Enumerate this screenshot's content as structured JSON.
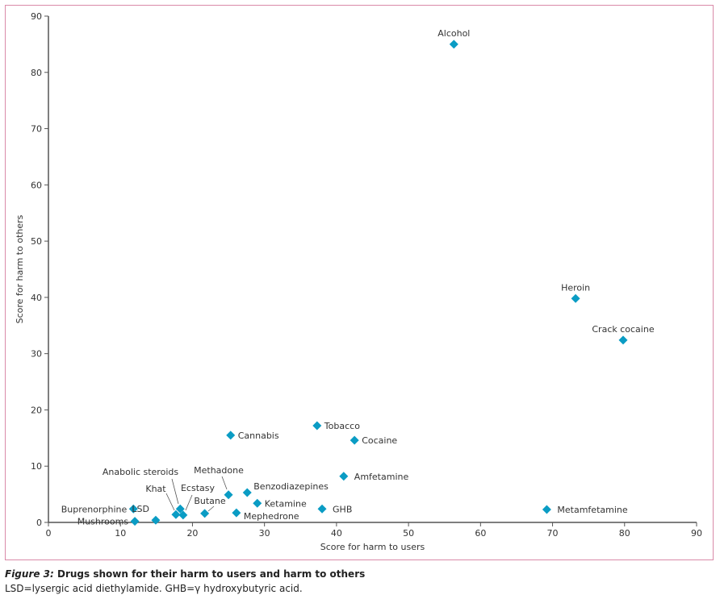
{
  "chart_data": {
    "type": "scatter",
    "title": "",
    "xlabel": "Score for harm to users",
    "ylabel": "Score for harm to others",
    "xlim": [
      0,
      90
    ],
    "ylim": [
      0,
      90
    ],
    "xticks": [
      0,
      10,
      20,
      30,
      40,
      50,
      60,
      70,
      80,
      90
    ],
    "yticks": [
      0,
      10,
      20,
      30,
      40,
      50,
      60,
      70,
      80,
      90
    ],
    "grid": false,
    "marker": "diamond",
    "marker_color": "#0a9cc4",
    "points": [
      {
        "label": "Alcohol",
        "x": 56.3,
        "y": 85.0,
        "label_pos": "top"
      },
      {
        "label": "Heroin",
        "x": 73.2,
        "y": 39.8,
        "label_pos": "top"
      },
      {
        "label": "Crack cocaine",
        "x": 79.8,
        "y": 32.4,
        "label_pos": "top"
      },
      {
        "label": "Metamfetamine",
        "x": 69.2,
        "y": 2.3,
        "label_pos": "right-far"
      },
      {
        "label": "Tobacco",
        "x": 37.3,
        "y": 17.2,
        "label_pos": "right"
      },
      {
        "label": "Cocaine",
        "x": 42.5,
        "y": 14.6,
        "label_pos": "right"
      },
      {
        "label": "Cannabis",
        "x": 25.3,
        "y": 15.5,
        "label_pos": "right"
      },
      {
        "label": "Amfetamine",
        "x": 41.0,
        "y": 8.2,
        "label_pos": "right-far"
      },
      {
        "label": "GHB",
        "x": 38.0,
        "y": 2.4,
        "label_pos": "right-far"
      },
      {
        "label": "Benzodiazepines",
        "x": 27.6,
        "y": 5.3,
        "label_pos": "right-up"
      },
      {
        "label": "Ketamine",
        "x": 29.0,
        "y": 3.4,
        "label_pos": "right"
      },
      {
        "label": "Methadone",
        "x": 25.0,
        "y": 4.9,
        "label_pos": "leader"
      },
      {
        "label": "Mephedrone",
        "x": 26.1,
        "y": 1.7,
        "label_pos": "right-down"
      },
      {
        "label": "Butane",
        "x": 21.7,
        "y": 1.6,
        "label_pos": "leader"
      },
      {
        "label": "Ecstasy",
        "x": 18.7,
        "y": 1.3,
        "label_pos": "leader"
      },
      {
        "label": "Anabolic steroids",
        "x": 18.3,
        "y": 2.4,
        "label_pos": "leader"
      },
      {
        "label": "Khat",
        "x": 17.7,
        "y": 1.4,
        "label_pos": "leader"
      },
      {
        "label": "LSD",
        "x": 14.9,
        "y": 0.4,
        "label_pos": "left-up"
      },
      {
        "label": "Buprenorphine",
        "x": 11.8,
        "y": 2.4,
        "label_pos": "left"
      },
      {
        "label": "Mushrooms",
        "x": 12.0,
        "y": 0.2,
        "label_pos": "left"
      }
    ]
  },
  "caption": {
    "figure_label": "Figure 3:",
    "title": " Drugs shown for their harm to users and harm to others",
    "note": "LSD=lysergic acid diethylamide. GHB=γ hydroxybutyric acid."
  },
  "colors": {
    "frame": "#d98aa8",
    "axis": "#555555",
    "marker": "#0a9cc4"
  }
}
